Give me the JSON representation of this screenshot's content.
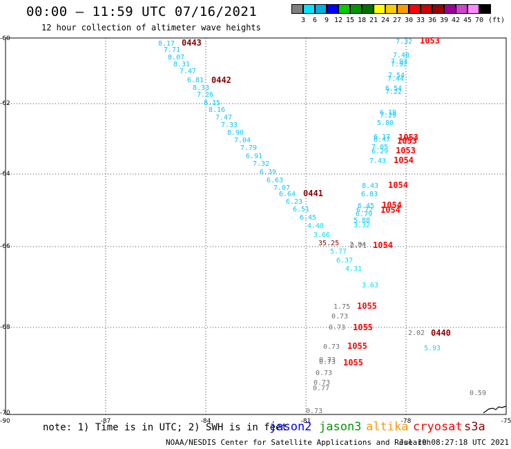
{
  "header": {
    "title": "00:00 — 11:59 UTC 07/16/2021",
    "subtitle": "12 hour collection of altimeter wave heights"
  },
  "colorbar": {
    "labels": [
      "3",
      "6",
      "9",
      "12",
      "15",
      "18",
      "21",
      "24",
      "27",
      "30",
      "33",
      "36",
      "39",
      "42",
      "45",
      "70"
    ],
    "unit": "(ft)",
    "colors": [
      "#808080",
      "#00e5ff",
      "#00b0e0",
      "#0000ff",
      "#00cc00",
      "#009600",
      "#007000",
      "#ffff00",
      "#ffcc00",
      "#ff9900",
      "#ff0000",
      "#cc0000",
      "#990000",
      "#990099",
      "#cc44cc",
      "#ff88ff",
      "#000000"
    ]
  },
  "axes": {
    "lat_labels": [
      "-60",
      "-62",
      "-64",
      "-66",
      "-68",
      "-70"
    ],
    "lon_labels": [
      "-90",
      "-87",
      "-84",
      "-81",
      "-78",
      "-75"
    ]
  },
  "colors": {
    "cyan": "#00c8ff",
    "light_cyan": "#00e0f0",
    "gray": "#707070",
    "dark_red": "#8b0000",
    "red": "#ff0000"
  },
  "observations": [
    {
      "t": "8.17",
      "c": "cyan"
    },
    {
      "t": "7.71",
      "c": "cyan"
    },
    {
      "t": "8.07",
      "c": "cyan"
    },
    {
      "t": "8.31",
      "c": "cyan"
    },
    {
      "t": "7.47",
      "c": "cyan"
    },
    {
      "t": "6.81",
      "c": "cyan"
    },
    {
      "t": "8.33",
      "c": "cyan"
    },
    {
      "t": "7.26",
      "c": "cyan"
    },
    {
      "t": "8.15",
      "c": "cyan"
    },
    {
      "t": "8.16",
      "c": "cyan"
    },
    {
      "t": "7.47",
      "c": "cyan"
    },
    {
      "t": "7.33",
      "c": "cyan"
    },
    {
      "t": "8.90",
      "c": "cyan"
    },
    {
      "t": "7.04",
      "c": "cyan"
    },
    {
      "t": "7.79",
      "c": "cyan"
    },
    {
      "t": "6.91",
      "c": "cyan"
    },
    {
      "t": "7.32",
      "c": "cyan"
    },
    {
      "t": "6.39",
      "c": "cyan"
    },
    {
      "t": "6.63",
      "c": "cyan"
    },
    {
      "t": "7.07",
      "c": "cyan"
    },
    {
      "t": "6.64",
      "c": "cyan"
    },
    {
      "t": "6.23",
      "c": "cyan"
    },
    {
      "t": "6.51",
      "c": "cyan"
    },
    {
      "t": "6.45",
      "c": "cyan"
    },
    {
      "t": "4.48",
      "c": "light_cyan"
    },
    {
      "t": "3.66",
      "c": "light_cyan"
    },
    {
      "t": "35.25",
      "c": "dark_red"
    },
    {
      "t": "5.77",
      "c": "light_cyan"
    },
    {
      "t": "6.37",
      "c": "light_cyan"
    },
    {
      "t": "4.31",
      "c": "light_cyan"
    },
    {
      "t": "3.63",
      "c": "light_cyan"
    },
    {
      "t": "2.84",
      "c": "gray"
    },
    {
      "t": "2.71",
      "c": "gray"
    },
    {
      "t": "7.32",
      "c": "cyan"
    },
    {
      "t": "7.48",
      "c": "cyan"
    },
    {
      "t": "7.93",
      "c": "cyan"
    },
    {
      "t": "7.92",
      "c": "cyan"
    },
    {
      "t": "7.54",
      "c": "cyan"
    },
    {
      "t": "7.44",
      "c": "cyan"
    },
    {
      "t": "6.54",
      "c": "cyan"
    },
    {
      "t": "7.22",
      "c": "cyan"
    },
    {
      "t": "6.18",
      "c": "cyan"
    },
    {
      "t": "7.29",
      "c": "cyan"
    },
    {
      "t": "5.80",
      "c": "cyan"
    },
    {
      "t": "6.17",
      "c": "cyan"
    },
    {
      "t": "6.47",
      "c": "cyan"
    },
    {
      "t": "7.05",
      "c": "cyan"
    },
    {
      "t": "6.29",
      "c": "cyan"
    },
    {
      "t": "7.43",
      "c": "cyan"
    },
    {
      "t": "8.43",
      "c": "cyan"
    },
    {
      "t": "6.83",
      "c": "cyan"
    },
    {
      "t": "6.45",
      "c": "cyan"
    },
    {
      "t": "6.72",
      "c": "cyan"
    },
    {
      "t": "6.79",
      "c": "cyan"
    },
    {
      "t": "5.88",
      "c": "cyan"
    },
    {
      "t": "3.32",
      "c": "light_cyan"
    },
    {
      "t": "1.75",
      "c": "gray"
    },
    {
      "t": "0.73",
      "c": "gray"
    },
    {
      "t": "0.73",
      "c": "gray"
    },
    {
      "t": "0.73",
      "c": "gray"
    },
    {
      "t": "0.73",
      "c": "gray"
    },
    {
      "t": "0.73",
      "c": "gray"
    },
    {
      "t": "0.73",
      "c": "gray"
    },
    {
      "t": "0.73",
      "c": "gray"
    },
    {
      "t": "0.77",
      "c": "gray"
    },
    {
      "t": "0.73",
      "c": "gray"
    },
    {
      "t": "2.02",
      "c": "gray"
    },
    {
      "t": "5.93",
      "c": "light_cyan"
    },
    {
      "t": "0.59",
      "c": "gray"
    }
  ],
  "pass_ids": [
    {
      "t": "0443",
      "c": "dark_red"
    },
    {
      "t": "0442",
      "c": "dark_red"
    },
    {
      "t": "0441",
      "c": "dark_red"
    },
    {
      "t": "0440",
      "c": "dark_red"
    },
    {
      "t": "1053",
      "c": "red"
    },
    {
      "t": "1053",
      "c": "red"
    },
    {
      "t": "1053",
      "c": "red"
    },
    {
      "t": "1053",
      "c": "red"
    },
    {
      "t": "1054",
      "c": "red"
    },
    {
      "t": "1054",
      "c": "red"
    },
    {
      "t": "1054",
      "c": "red"
    },
    {
      "t": "1054",
      "c": "red"
    },
    {
      "t": "1054",
      "c": "red"
    },
    {
      "t": "1055",
      "c": "red"
    },
    {
      "t": "1055",
      "c": "red"
    },
    {
      "t": "1055",
      "c": "red"
    },
    {
      "t": "1055",
      "c": "red"
    }
  ],
  "footer": {
    "note": "note: 1) Time is in UTC; 2) SWH is in feet",
    "missions": [
      {
        "name": "jason2",
        "color": "#0000ff"
      },
      {
        "name": "jason3",
        "color": "#009900"
      },
      {
        "name": "altika",
        "color": "#ff9900"
      },
      {
        "name": "cryosat",
        "color": "#ff0000"
      },
      {
        "name": "s3a",
        "color": "#8b0000"
      }
    ],
    "credit": "NOAA/NESDIS Center for Satellite Applications and Research",
    "timestamp": "Jul 19 08:27:18 UTC 2021"
  }
}
